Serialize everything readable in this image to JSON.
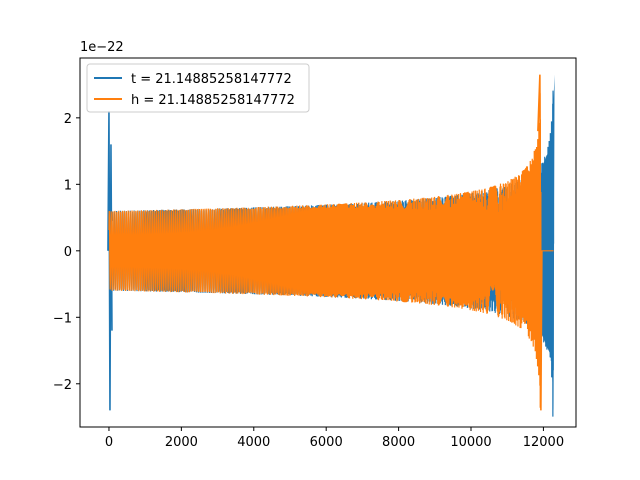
{
  "chart_data": {
    "type": "line",
    "title": "",
    "xlabel": "",
    "ylabel": "",
    "y_offset_label": "1e−22",
    "xlim": [
      -800,
      12900
    ],
    "ylim": [
      -2.65,
      2.9
    ],
    "x_ticks": [
      0,
      2000,
      4000,
      6000,
      8000,
      10000,
      12000
    ],
    "x_tick_labels": [
      "0",
      "2000",
      "4000",
      "6000",
      "8000",
      "10000",
      "12000"
    ],
    "y_ticks": [
      -2,
      -1,
      0,
      1,
      2
    ],
    "y_tick_labels": [
      "−2",
      "−1",
      "0",
      "1",
      "2"
    ],
    "grid": false,
    "legend_position": "top-left",
    "series": [
      {
        "name": "t = 21.14885258147772",
        "color": "#1f77b4",
        "description": "waveform with initial spike at x=0 and final chirp spike near x=12280",
        "start_spike_x": 0,
        "start_spike_range": [
          -2.4,
          2.1
        ],
        "chirp_x_start": 100,
        "chirp_x_end": 12280,
        "amplitude_start": 0.6,
        "amplitude_end": 2.65,
        "peak_min": -2.4
      },
      {
        "name": "h = 21.14885258147772",
        "color": "#ff7f0e",
        "description": "waveform chirp ending near x=11930 then flat at zero",
        "chirp_x_start": 0,
        "chirp_x_end": 11930,
        "amplitude_start": 0.6,
        "amplitude_end": 2.65,
        "peak_min": -2.4,
        "flat_until_x": 12280
      }
    ]
  }
}
